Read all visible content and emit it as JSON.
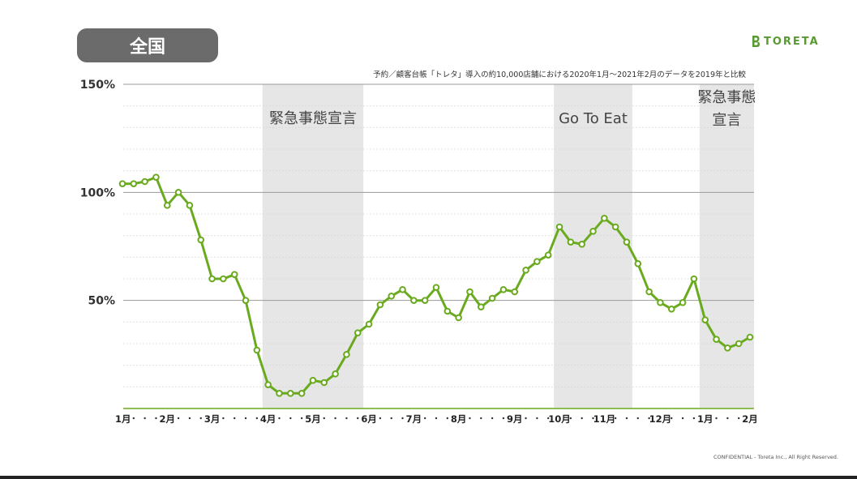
{
  "header": {
    "title": "全国",
    "subtitle": "予約／顧客台帳「トレタ」導入の約10,000店舗における2020年1月〜2021年2月のデータを2019年と比較",
    "logo_text": "TORETA",
    "confidential": "CONFIDENTIAL - Toreta Inc., All Right Reserved."
  },
  "colors": {
    "line": "#6aaa1e",
    "band": "#e6e6e6",
    "title_bg": "#6b6b6b",
    "logo": "#5a9a32"
  },
  "chart_data": {
    "type": "line",
    "ylim": [
      0,
      150
    ],
    "yticks": [
      {
        "value": 50,
        "label": "50%"
      },
      {
        "value": 100,
        "label": "100%"
      },
      {
        "value": 150,
        "label": "150%"
      }
    ],
    "grid": true,
    "month_labels": [
      {
        "index": 0,
        "label": "1月"
      },
      {
        "index": 4,
        "label": "2月"
      },
      {
        "index": 8,
        "label": "3月"
      },
      {
        "index": 13,
        "label": "4月"
      },
      {
        "index": 17,
        "label": "5月"
      },
      {
        "index": 22,
        "label": "6月"
      },
      {
        "index": 26,
        "label": "7月"
      },
      {
        "index": 30,
        "label": "8月"
      },
      {
        "index": 35,
        "label": "9月"
      },
      {
        "index": 39,
        "label": "10月"
      },
      {
        "index": 43,
        "label": "11月"
      },
      {
        "index": 48,
        "label": "12月"
      },
      {
        "index": 52,
        "label": "1月"
      },
      {
        "index": 56,
        "label": "2月"
      }
    ],
    "series": [
      {
        "values": [
          104,
          104,
          105,
          107,
          94,
          100,
          94,
          78,
          60,
          60,
          62,
          50,
          27,
          11,
          7,
          7,
          7,
          13,
          12,
          16,
          25,
          35,
          39,
          48,
          52,
          55,
          50,
          50,
          56,
          45,
          42,
          54,
          47,
          51,
          55,
          54,
          64,
          68,
          71,
          84,
          77,
          76,
          82,
          88,
          84,
          77,
          67,
          54,
          49,
          46,
          49,
          60,
          41,
          32,
          28,
          30,
          33
        ]
      }
    ],
    "bands": [
      {
        "start": 13,
        "end": 21,
        "label": "緊急事態宣言"
      },
      {
        "start": 39,
        "end": 45,
        "label": "Go To Eat"
      },
      {
        "start": 52,
        "end": 56,
        "label": "緊急事態\n宣言"
      }
    ]
  }
}
